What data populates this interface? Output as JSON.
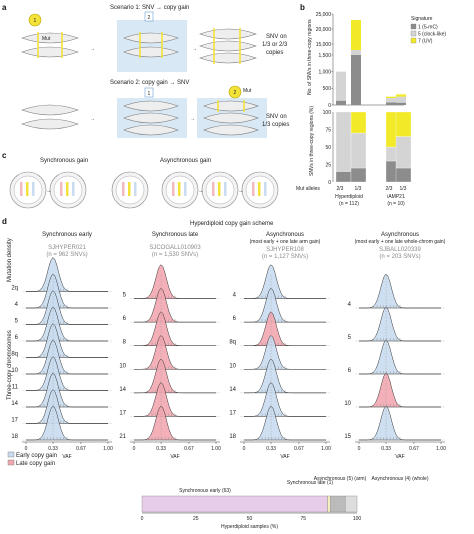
{
  "panels": {
    "a": "a",
    "b": "b",
    "c": "c",
    "d": "d"
  },
  "panel_a": {
    "scenario1": "Scenario 1: SNV → copy gain",
    "scenario2": "Scenario 2: copy gain → SNV",
    "step1": "1",
    "step2": "2",
    "mut": "Mut",
    "label1": [
      "SNV on",
      "1/3 or 2/3",
      "copies"
    ],
    "label2": [
      "SNV on",
      "1/3 copies"
    ],
    "colors": {
      "mutation": "#f2e23a",
      "box": "#d8e8f5"
    }
  },
  "chart_data": [
    {
      "type": "bar",
      "stacked": true,
      "ylabel": "No. of SNVs in three-copy regions",
      "y_ticks": [
        "0",
        "500",
        "1,000",
        "1,500",
        "15,000",
        "20,000",
        "25,000"
      ],
      "legend_title": "Signature",
      "legend_position": "top-right",
      "series": [
        {
          "name": "1 (5-mC)",
          "color": "#8c8c8c",
          "values": [
            130,
            1500,
            80,
            70
          ]
        },
        {
          "name": "5 (clock-like)",
          "color": "#d4d4d4",
          "values": [
            870,
            13000,
            130,
            180
          ]
        },
        {
          "name": "7 (UV)",
          "color": "#f2ea28",
          "values": [
            0,
            8500,
            40,
            70
          ]
        }
      ],
      "categories": [
        "2/3",
        "1/3",
        "2/3",
        "1/3"
      ],
      "cohort_labels": [
        {
          "name": "Hyperdiploid",
          "n": "(n = 112)"
        },
        {
          "name": "iAMP21",
          "n": "(n = 10)"
        }
      ],
      "mut_alleles_label": "Mut alleles"
    },
    {
      "type": "bar",
      "stacked": true,
      "ylabel": "SNVs in three-copy regions (%)",
      "ylim": [
        0,
        100
      ],
      "y_ticks": [
        "0",
        "25",
        "50",
        "75",
        "100"
      ],
      "series": [
        {
          "name": "1 (5-mC)",
          "values": [
            15,
            20,
            30,
            20
          ]
        },
        {
          "name": "5 (clock-like)",
          "values": [
            85,
            50,
            20,
            45
          ]
        },
        {
          "name": "7 (UV)",
          "values": [
            0,
            30,
            50,
            35
          ]
        }
      ]
    }
  ],
  "panel_c": {
    "sync": "Synchronous gain",
    "async": "Asynchronous gain"
  },
  "panel_d": {
    "title": "Hyperdiploid copy gain scheme",
    "ylabel_top": "Mutation density",
    "ylabel_main": "Three-copy chromosomes",
    "xlabel": "VAF",
    "x_ticks": [
      "0",
      "0.33",
      "0.67",
      "1.00"
    ],
    "columns": [
      {
        "title": "Synchronous early",
        "sample": "SJHYPER021",
        "snvs": "(n = 962 SNVs)",
        "chroms": [
          {
            "c": "2q",
            "type": "early",
            "peak": 0.33
          },
          {
            "c": "4",
            "type": "early",
            "peak": 0.33
          },
          {
            "c": "5",
            "type": "early",
            "peak": 0.33
          },
          {
            "c": "6",
            "type": "early",
            "peak": 0.33
          },
          {
            "c": "8q",
            "type": "early",
            "peak": 0.33
          },
          {
            "c": "10",
            "type": "early",
            "peak": 0.33
          },
          {
            "c": "11",
            "type": "early",
            "peak": 0.33
          },
          {
            "c": "14",
            "type": "early",
            "peak": 0.33
          },
          {
            "c": "17",
            "type": "early",
            "peak": 0.33
          },
          {
            "c": "18",
            "type": "early",
            "peak": 0.33
          }
        ]
      },
      {
        "title": "Synchronous late",
        "sample": "SJCOGALL010903",
        "snvs": "(n = 1,530 SNVs)",
        "chroms": [
          {
            "c": "5",
            "type": "late",
            "peak": 0.33
          },
          {
            "c": "6",
            "type": "late",
            "peak": 0.33
          },
          {
            "c": "8",
            "type": "late",
            "peak": 0.33
          },
          {
            "c": "10",
            "type": "late",
            "peak": 0.33
          },
          {
            "c": "14",
            "type": "late",
            "peak": 0.33
          },
          {
            "c": "17",
            "type": "late",
            "peak": 0.33
          },
          {
            "c": "21",
            "type": "late",
            "peak": 0.33
          }
        ]
      },
      {
        "title": "Asynchronous",
        "subtitle": "(most early + one late arm gain)",
        "sample": "SJHYPER108",
        "snvs": "(n = 1,127 SNVs)",
        "chroms": [
          {
            "c": "4",
            "type": "early",
            "peak": 0.33
          },
          {
            "c": "6",
            "type": "early",
            "peak": 0.33
          },
          {
            "c": "8q",
            "type": "late",
            "peak": 0.33
          },
          {
            "c": "10",
            "type": "early",
            "peak": 0.33
          },
          {
            "c": "14",
            "type": "early",
            "peak": 0.33
          },
          {
            "c": "17",
            "type": "early",
            "peak": 0.33
          },
          {
            "c": "18",
            "type": "early",
            "peak": 0.33
          }
        ]
      },
      {
        "title": "Asynchronous",
        "subtitle": "(most early + one late whole-chrom gain)",
        "sample": "SJBALL020339",
        "snvs": "(n = 203 SNVs)",
        "chroms": [
          {
            "c": "4",
            "type": "early",
            "peak": 0.33
          },
          {
            "c": "5",
            "type": "early",
            "peak": 0.33
          },
          {
            "c": "6",
            "type": "early",
            "peak": 0.33
          },
          {
            "c": "10",
            "type": "late",
            "peak": 0.33
          },
          {
            "c": "15",
            "type": "early",
            "peak": 0.33
          }
        ]
      }
    ],
    "legend": [
      {
        "name": "Early copy gain",
        "color": "#c9dcf0"
      },
      {
        "name": "Late copy gain",
        "color": "#f2a7b0"
      }
    ],
    "bottom_bar": {
      "xlabel": "Hyperdiploid samples (%)",
      "x_ticks": [
        "0",
        "25",
        "50",
        "75",
        "100"
      ],
      "segments": [
        {
          "name": "Synchronous early (63)",
          "value": 63,
          "color": "#e6cce8"
        },
        {
          "name": "Synchronous late (1)",
          "value": 1,
          "color": "#f5efc0"
        },
        {
          "name": "Asynchronous (5) (arm)",
          "value": 5,
          "color": "#bbbbbb"
        },
        {
          "name": "Asynchronous (4) (whole)",
          "value": 4,
          "color": "#dddddd"
        }
      ]
    }
  }
}
